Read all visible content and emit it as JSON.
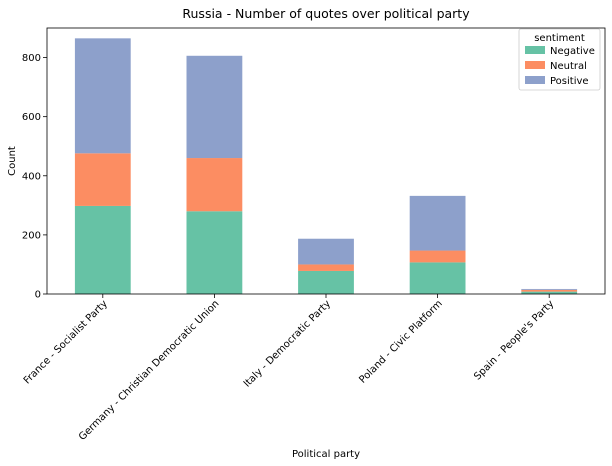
{
  "chart_data": {
    "type": "bar",
    "stacked": true,
    "title": "Russia - Number of quotes over political party",
    "xlabel": "Political party",
    "ylabel": "Count",
    "ylim": [
      0,
      900
    ],
    "yticks": [
      0,
      200,
      400,
      600,
      800
    ],
    "categories": [
      "France - Socialist Party",
      "Germany - Christian Democratic Union",
      "Italy - Democratic Party",
      "Poland - Civic Platform",
      "Spain - People's Party"
    ],
    "series": [
      {
        "name": "Negative",
        "color": "#66c2a5",
        "values": [
          298,
          280,
          78,
          107,
          8
        ]
      },
      {
        "name": "Neutral",
        "color": "#fc8d62",
        "values": [
          178,
          180,
          22,
          40,
          6
        ]
      },
      {
        "name": "Positive",
        "color": "#8da0cb",
        "values": [
          389,
          346,
          87,
          185,
          3
        ]
      }
    ],
    "legend": {
      "title": "sentiment",
      "placement": "top-right"
    },
    "grid": false
  }
}
